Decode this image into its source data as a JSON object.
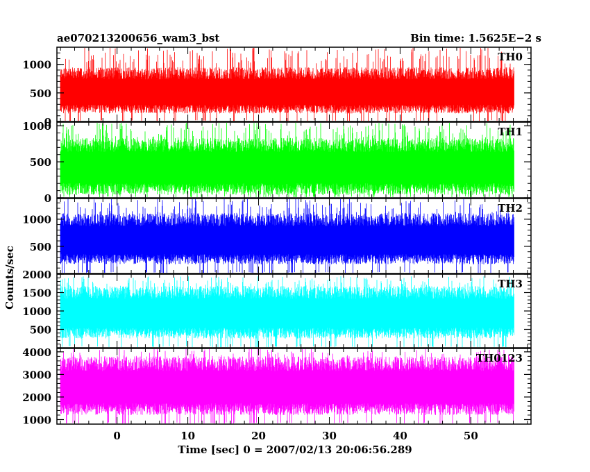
{
  "title_left": "ae070213200656_wam3_bst",
  "title_right": "Bin time: 1.5625E−2 s",
  "chart_data": {
    "type": "line",
    "xlabel": "Time [sec] 0 = 2007/02/13 20:06:56.289",
    "ylabel": "Counts/sec",
    "xlim": [
      -8.5,
      58.5
    ],
    "data_x_range": [
      -8,
      56
    ],
    "xticks": [
      0,
      10,
      20,
      30,
      40,
      50
    ],
    "xtick_labels": [
      "0",
      "10",
      "20",
      "30",
      "40",
      "50"
    ],
    "panels": [
      {
        "name": "TH0",
        "color": "#ff0000",
        "ylim": [
          0,
          1300
        ],
        "yticks": [
          0,
          500,
          1000
        ],
        "ytick_labels": [
          "0",
          "500",
          "1000"
        ],
        "mean": 480,
        "noise_low": 340,
        "noise_high": 470,
        "spike_max": 1300
      },
      {
        "name": "TH1",
        "color": "#00ff00",
        "ylim": [
          0,
          1050
        ],
        "yticks": [
          0,
          500,
          1000
        ],
        "ytick_labels": [
          "0",
          "500",
          "1000"
        ],
        "mean": 400,
        "noise_low": 360,
        "noise_high": 430,
        "spike_max": 1050
      },
      {
        "name": "TH2",
        "color": "#0000ff",
        "ylim": [
          0,
          1380
        ],
        "yticks": [
          500,
          1000
        ],
        "ytick_labels": [
          "500",
          "1000"
        ],
        "mean": 580,
        "noise_low": 410,
        "noise_high": 530,
        "spike_max": 1380
      },
      {
        "name": "TH3",
        "color": "#00ffff",
        "ylim": [
          0,
          2000
        ],
        "yticks": [
          500,
          1000,
          1500,
          2000
        ],
        "ytick_labels": [
          "500",
          "1000",
          "1500",
          "2000"
        ],
        "mean": 900,
        "noise_low": 650,
        "noise_high": 780,
        "spike_max": 1950
      },
      {
        "name": "TH0123",
        "color": "#ff00ff",
        "ylim": [
          800,
          4150
        ],
        "yticks": [
          1000,
          2000,
          3000,
          4000
        ],
        "ytick_labels": [
          "1000",
          "2000",
          "3000",
          "4000"
        ],
        "mean": 2350,
        "noise_low": 1150,
        "noise_high": 1450,
        "spike_max": 4150
      }
    ]
  }
}
